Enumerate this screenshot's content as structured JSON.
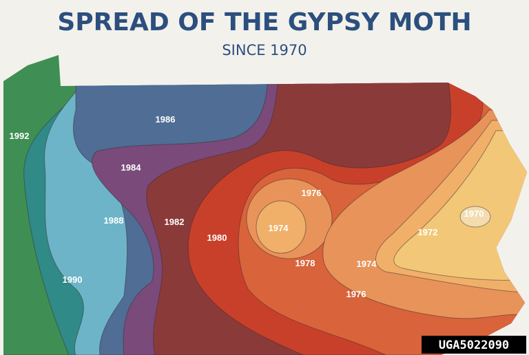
{
  "title": "SPREAD OF THE GYPSY MOTH",
  "subtitle": "SINCE 1970",
  "zone_labels": [
    "1992",
    "1986",
    "1984",
    "1988",
    "1982",
    "1980",
    "1976",
    "1974",
    "1978",
    "1974",
    "1976",
    "1972",
    "1970",
    "1990"
  ],
  "watermark": "UGA5022090"
}
